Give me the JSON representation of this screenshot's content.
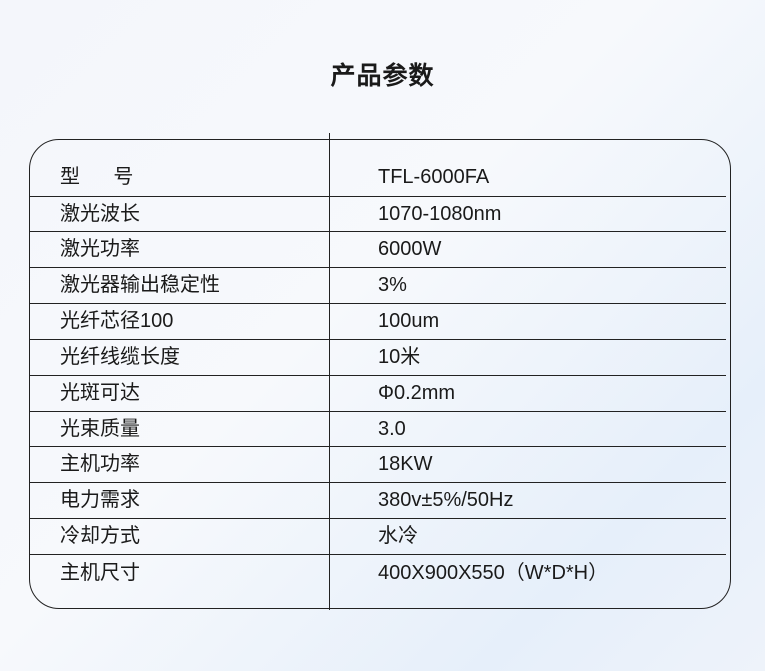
{
  "title": "产品参数",
  "rows": [
    {
      "label": "型      号",
      "value": "TFL-6000FA"
    },
    {
      "label": "激光波长",
      "value": "1070-1080nm"
    },
    {
      "label": "激光功率",
      "value": "6000W"
    },
    {
      "label": "激光器输出稳定性",
      "value": "3%"
    },
    {
      "label": "光纤芯径100",
      "value": "100um"
    },
    {
      "label": "光纤线缆长度",
      "value": "10米"
    },
    {
      "label": "光斑可达",
      "value": "Φ0.2mm"
    },
    {
      "label": "光束质量",
      "value": "3.0"
    },
    {
      "label": "主机功率",
      "value": "18KW"
    },
    {
      "label": "电力需求",
      "value": "380v±5%/50Hz"
    },
    {
      "label": "冷却方式",
      "value": "水冷"
    },
    {
      "label": "主机尺寸",
      "value": "400X900X550（W*D*H）"
    }
  ]
}
